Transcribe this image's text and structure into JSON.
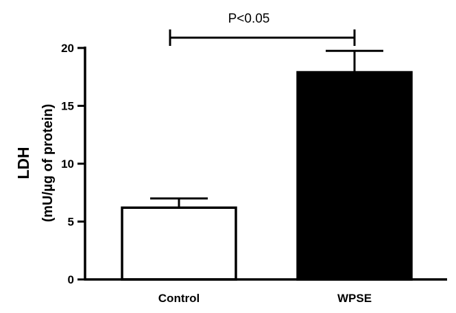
{
  "chart_data": {
    "type": "bar",
    "categories": [
      "Control",
      "WPSE"
    ],
    "values": [
      6.2,
      17.9
    ],
    "errors": [
      0.8,
      1.85
    ],
    "bar_fills": [
      "#ffffff",
      "#000000"
    ],
    "ylabel": "LDH",
    "ylabel_units": "(mU/µg of protein)",
    "ylim": [
      0,
      20
    ],
    "yticks": [
      "0",
      "5",
      "10",
      "15",
      "20"
    ],
    "significance": {
      "label": "P<0.05",
      "between": [
        "Control",
        "WPSE"
      ]
    },
    "grid": false
  }
}
